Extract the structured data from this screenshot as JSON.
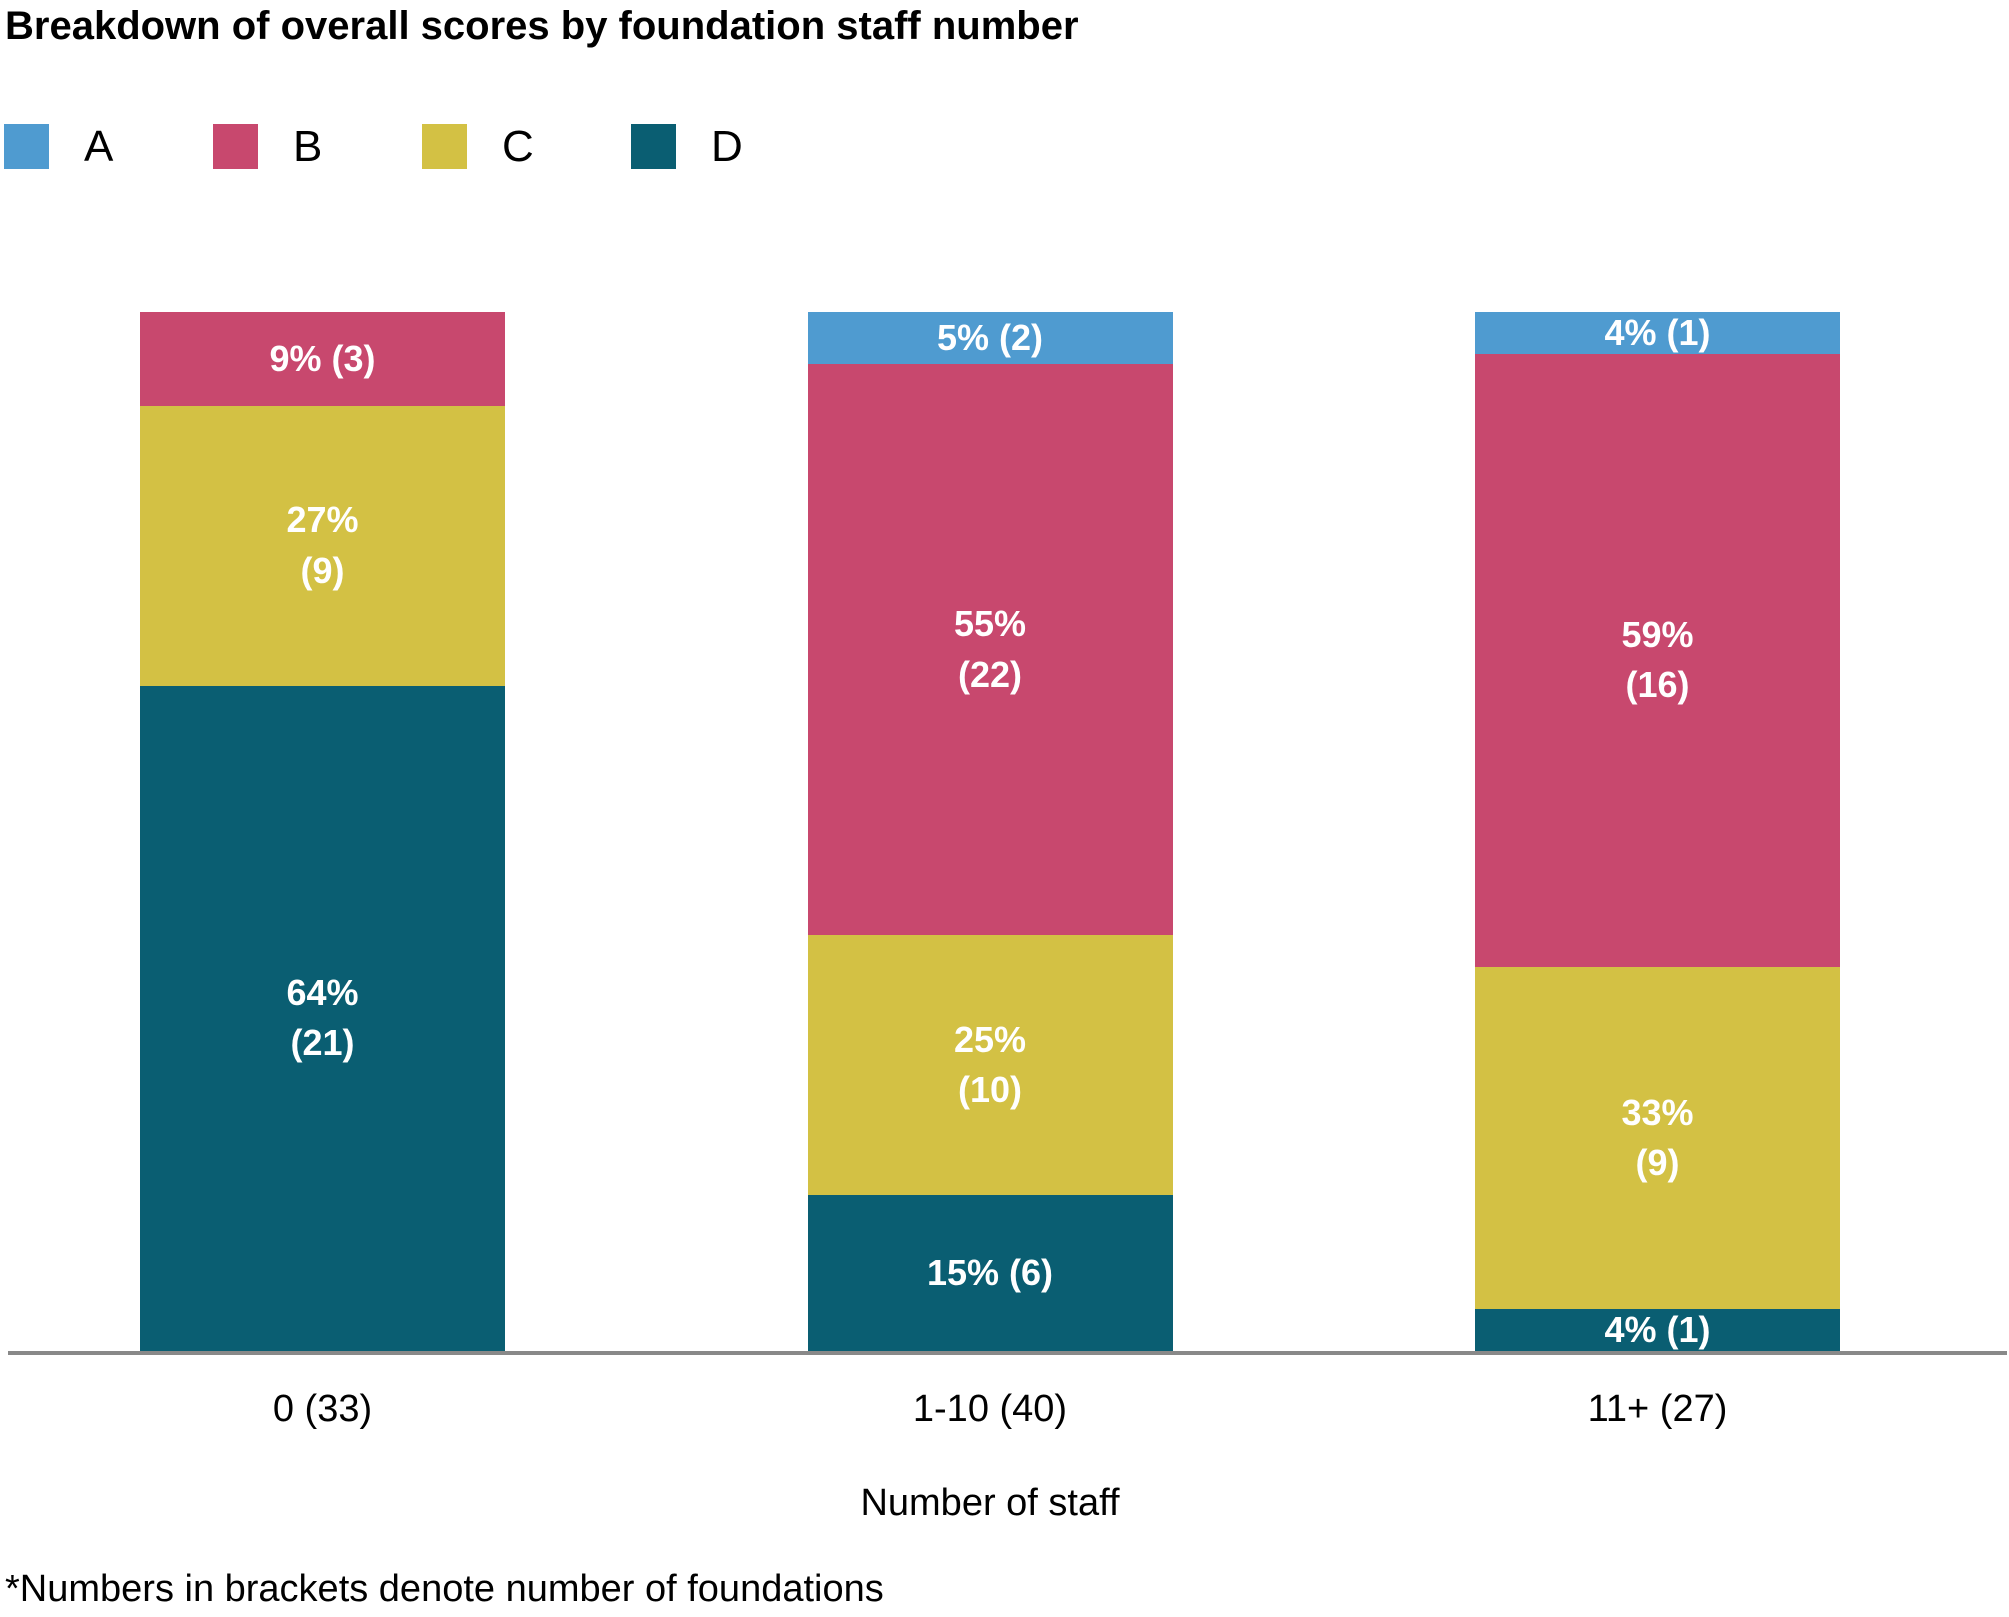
{
  "title": "Breakdown of overall scores by foundation staff number",
  "legend": [
    {
      "label": "A",
      "color": "#4f9bd0"
    },
    {
      "label": "B",
      "color": "#c8486e"
    },
    {
      "label": "C",
      "color": "#d3c144"
    },
    {
      "label": "D",
      "color": "#0a5e72"
    }
  ],
  "chart_data": {
    "type": "bar",
    "stacked": true,
    "orientation": "vertical",
    "title": "Breakdown of overall scores by foundation staff number",
    "xlabel": "Number of staff",
    "ylabel": "",
    "ylim": [
      0,
      100
    ],
    "grid": false,
    "legend_position": "top-left",
    "categories": [
      "0 (33)",
      "1-10 (40)",
      "11+ (27)"
    ],
    "category_totals": [
      33,
      40,
      27
    ],
    "series": [
      {
        "name": "A",
        "color": "#4f9bd0",
        "values_pct": [
          0,
          5,
          4
        ],
        "counts": [
          0,
          2,
          1
        ]
      },
      {
        "name": "B",
        "color": "#c8486e",
        "values_pct": [
          9,
          55,
          59
        ],
        "counts": [
          3,
          22,
          16
        ]
      },
      {
        "name": "C",
        "color": "#d3c144",
        "values_pct": [
          27,
          25,
          33
        ],
        "counts": [
          9,
          10,
          9
        ]
      },
      {
        "name": "D",
        "color": "#0a5e72",
        "values_pct": [
          64,
          15,
          4
        ],
        "counts": [
          21,
          6,
          1
        ]
      }
    ],
    "bars": [
      {
        "category": "0 (33)",
        "segments": [
          {
            "series": "B",
            "pct": 9,
            "count": 3,
            "lines": [
              "9% (3)"
            ]
          },
          {
            "series": "C",
            "pct": 27,
            "count": 9,
            "lines": [
              "27%",
              "(9)"
            ]
          },
          {
            "series": "D",
            "pct": 64,
            "count": 21,
            "lines": [
              "64%",
              "(21)"
            ]
          }
        ]
      },
      {
        "category": "1-10 (40)",
        "segments": [
          {
            "series": "A",
            "pct": 5,
            "count": 2,
            "lines": [
              "5% (2)"
            ]
          },
          {
            "series": "B",
            "pct": 55,
            "count": 22,
            "lines": [
              "55%",
              "(22)"
            ]
          },
          {
            "series": "C",
            "pct": 25,
            "count": 10,
            "lines": [
              "25%",
              "(10)"
            ]
          },
          {
            "series": "D",
            "pct": 15,
            "count": 6,
            "lines": [
              "15% (6)"
            ]
          }
        ]
      },
      {
        "category": "11+ (27)",
        "segments": [
          {
            "series": "A",
            "pct": 4,
            "count": 1,
            "lines": [
              "4% (1)"
            ]
          },
          {
            "series": "B",
            "pct": 59,
            "count": 16,
            "lines": [
              "59%",
              "(16)"
            ]
          },
          {
            "series": "C",
            "pct": 33,
            "count": 9,
            "lines": [
              "33%",
              "(9)"
            ]
          },
          {
            "series": "D",
            "pct": 4,
            "count": 1,
            "lines": [
              "4% (1)"
            ]
          }
        ]
      }
    ],
    "footnote": "*Numbers in brackets denote number of foundations"
  },
  "xlabel": "Number of staff",
  "footnote": "*Numbers in brackets denote number of foundations"
}
